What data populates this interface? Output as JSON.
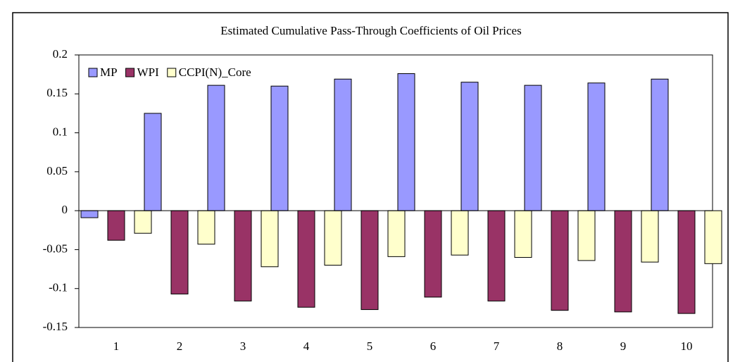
{
  "chart_data": {
    "type": "bar",
    "title": "Estimated Cumulative Pass-Through Coefficients of Oil Prices",
    "categories": [
      "1",
      "2",
      "3",
      "4",
      "5",
      "6",
      "7",
      "8",
      "9",
      "10"
    ],
    "series": [
      {
        "name": "MP",
        "color": "#9999ff",
        "values": [
          -0.009,
          0.125,
          0.161,
          0.16,
          0.169,
          0.176,
          0.165,
          0.161,
          0.164,
          0.169
        ]
      },
      {
        "name": "WPI",
        "color": "#993366",
        "values": [
          -0.038,
          -0.107,
          -0.116,
          -0.124,
          -0.127,
          -0.111,
          -0.116,
          -0.128,
          -0.13,
          -0.132
        ]
      },
      {
        "name": "CCPI(N)_Core",
        "color": "#ffffcc",
        "values": [
          -0.029,
          -0.043,
          -0.072,
          -0.07,
          -0.059,
          -0.057,
          -0.06,
          -0.064,
          -0.066,
          -0.068
        ]
      }
    ],
    "ylim": [
      -0.15,
      0.2
    ],
    "yticks": [
      0.2,
      0.15,
      0.1,
      0.05,
      0,
      -0.05,
      -0.1,
      -0.15
    ],
    "grid": false,
    "legend": "top-left"
  }
}
